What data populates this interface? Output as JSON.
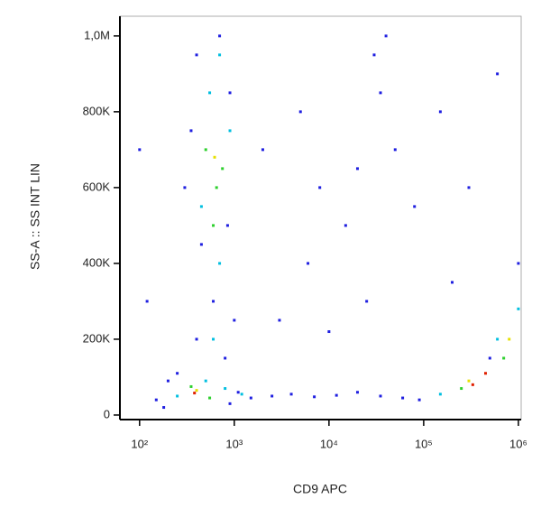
{
  "chart_data": {
    "type": "scatter",
    "x_label": "CD9 APC",
    "y_label": "SS-A :: SS INT LIN",
    "xscale": "log",
    "xlim": [
      62,
      1070000
    ],
    "xticks": [
      {
        "value": 100,
        "label": "10²"
      },
      {
        "value": 1000,
        "label": "10³"
      },
      {
        "value": 10000,
        "label": "10⁴"
      },
      {
        "value": 100000,
        "label": "10⁵"
      },
      {
        "value": 1000000,
        "label": "10⁶"
      }
    ],
    "ylim": [
      -12000,
      1052000
    ],
    "yticks": [
      0,
      {
        "value": 200000,
        "label": "200K"
      },
      {
        "value": 400000,
        "label": "400K"
      },
      {
        "value": 600000,
        "label": "600K"
      },
      {
        "value": 800000,
        "label": "800K"
      },
      {
        "value": 1000000,
        "label": "1,0M"
      }
    ],
    "series": [
      {
        "color": "#1f1fe0",
        "x": [
          150,
          200,
          180,
          250,
          900,
          1100,
          1500,
          2500,
          4000,
          7000,
          12000,
          20000,
          35000,
          60000,
          90000,
          400,
          700,
          900,
          350,
          300,
          450,
          850,
          600,
          1000,
          400,
          800,
          2000,
          5000,
          8000,
          15000,
          30000,
          40000,
          35000,
          25000,
          50000,
          80000,
          150000,
          300000,
          600000,
          1000000,
          3000,
          10000,
          200000,
          500000,
          120,
          100,
          6000,
          20000
        ],
        "y": [
          40000,
          90000,
          20000,
          110000,
          30000,
          60000,
          45000,
          50000,
          55000,
          48000,
          52000,
          60000,
          50000,
          45000,
          40000,
          950000,
          1000000,
          850000,
          750000,
          600000,
          450000,
          500000,
          300000,
          250000,
          200000,
          150000,
          700000,
          800000,
          600000,
          500000,
          950000,
          1000000,
          850000,
          300000,
          700000,
          550000,
          800000,
          600000,
          900000,
          400000,
          250000,
          220000,
          350000,
          150000,
          300000,
          700000,
          400000,
          650000
        ]
      },
      {
        "color": "#00bfe0",
        "x": [
          250,
          500,
          800,
          600,
          700,
          450,
          900,
          550,
          150000,
          600000,
          1000000,
          1200,
          700
        ],
        "y": [
          50000,
          90000,
          70000,
          200000,
          400000,
          550000,
          750000,
          850000,
          55000,
          200000,
          280000,
          55000,
          950000
        ]
      },
      {
        "color": "#2ed02e",
        "x": [
          350,
          550,
          650,
          500,
          750,
          600,
          250000,
          700000
        ],
        "y": [
          75000,
          45000,
          600000,
          700000,
          650000,
          500000,
          70000,
          150000
        ]
      },
      {
        "color": "#e6e000",
        "x": [
          400,
          620,
          300000,
          800000
        ],
        "y": [
          65000,
          680000,
          90000,
          200000
        ]
      },
      {
        "color": "#e02000",
        "x": [
          380,
          330000,
          450000
        ],
        "y": [
          58000,
          80000,
          110000
        ]
      }
    ]
  }
}
